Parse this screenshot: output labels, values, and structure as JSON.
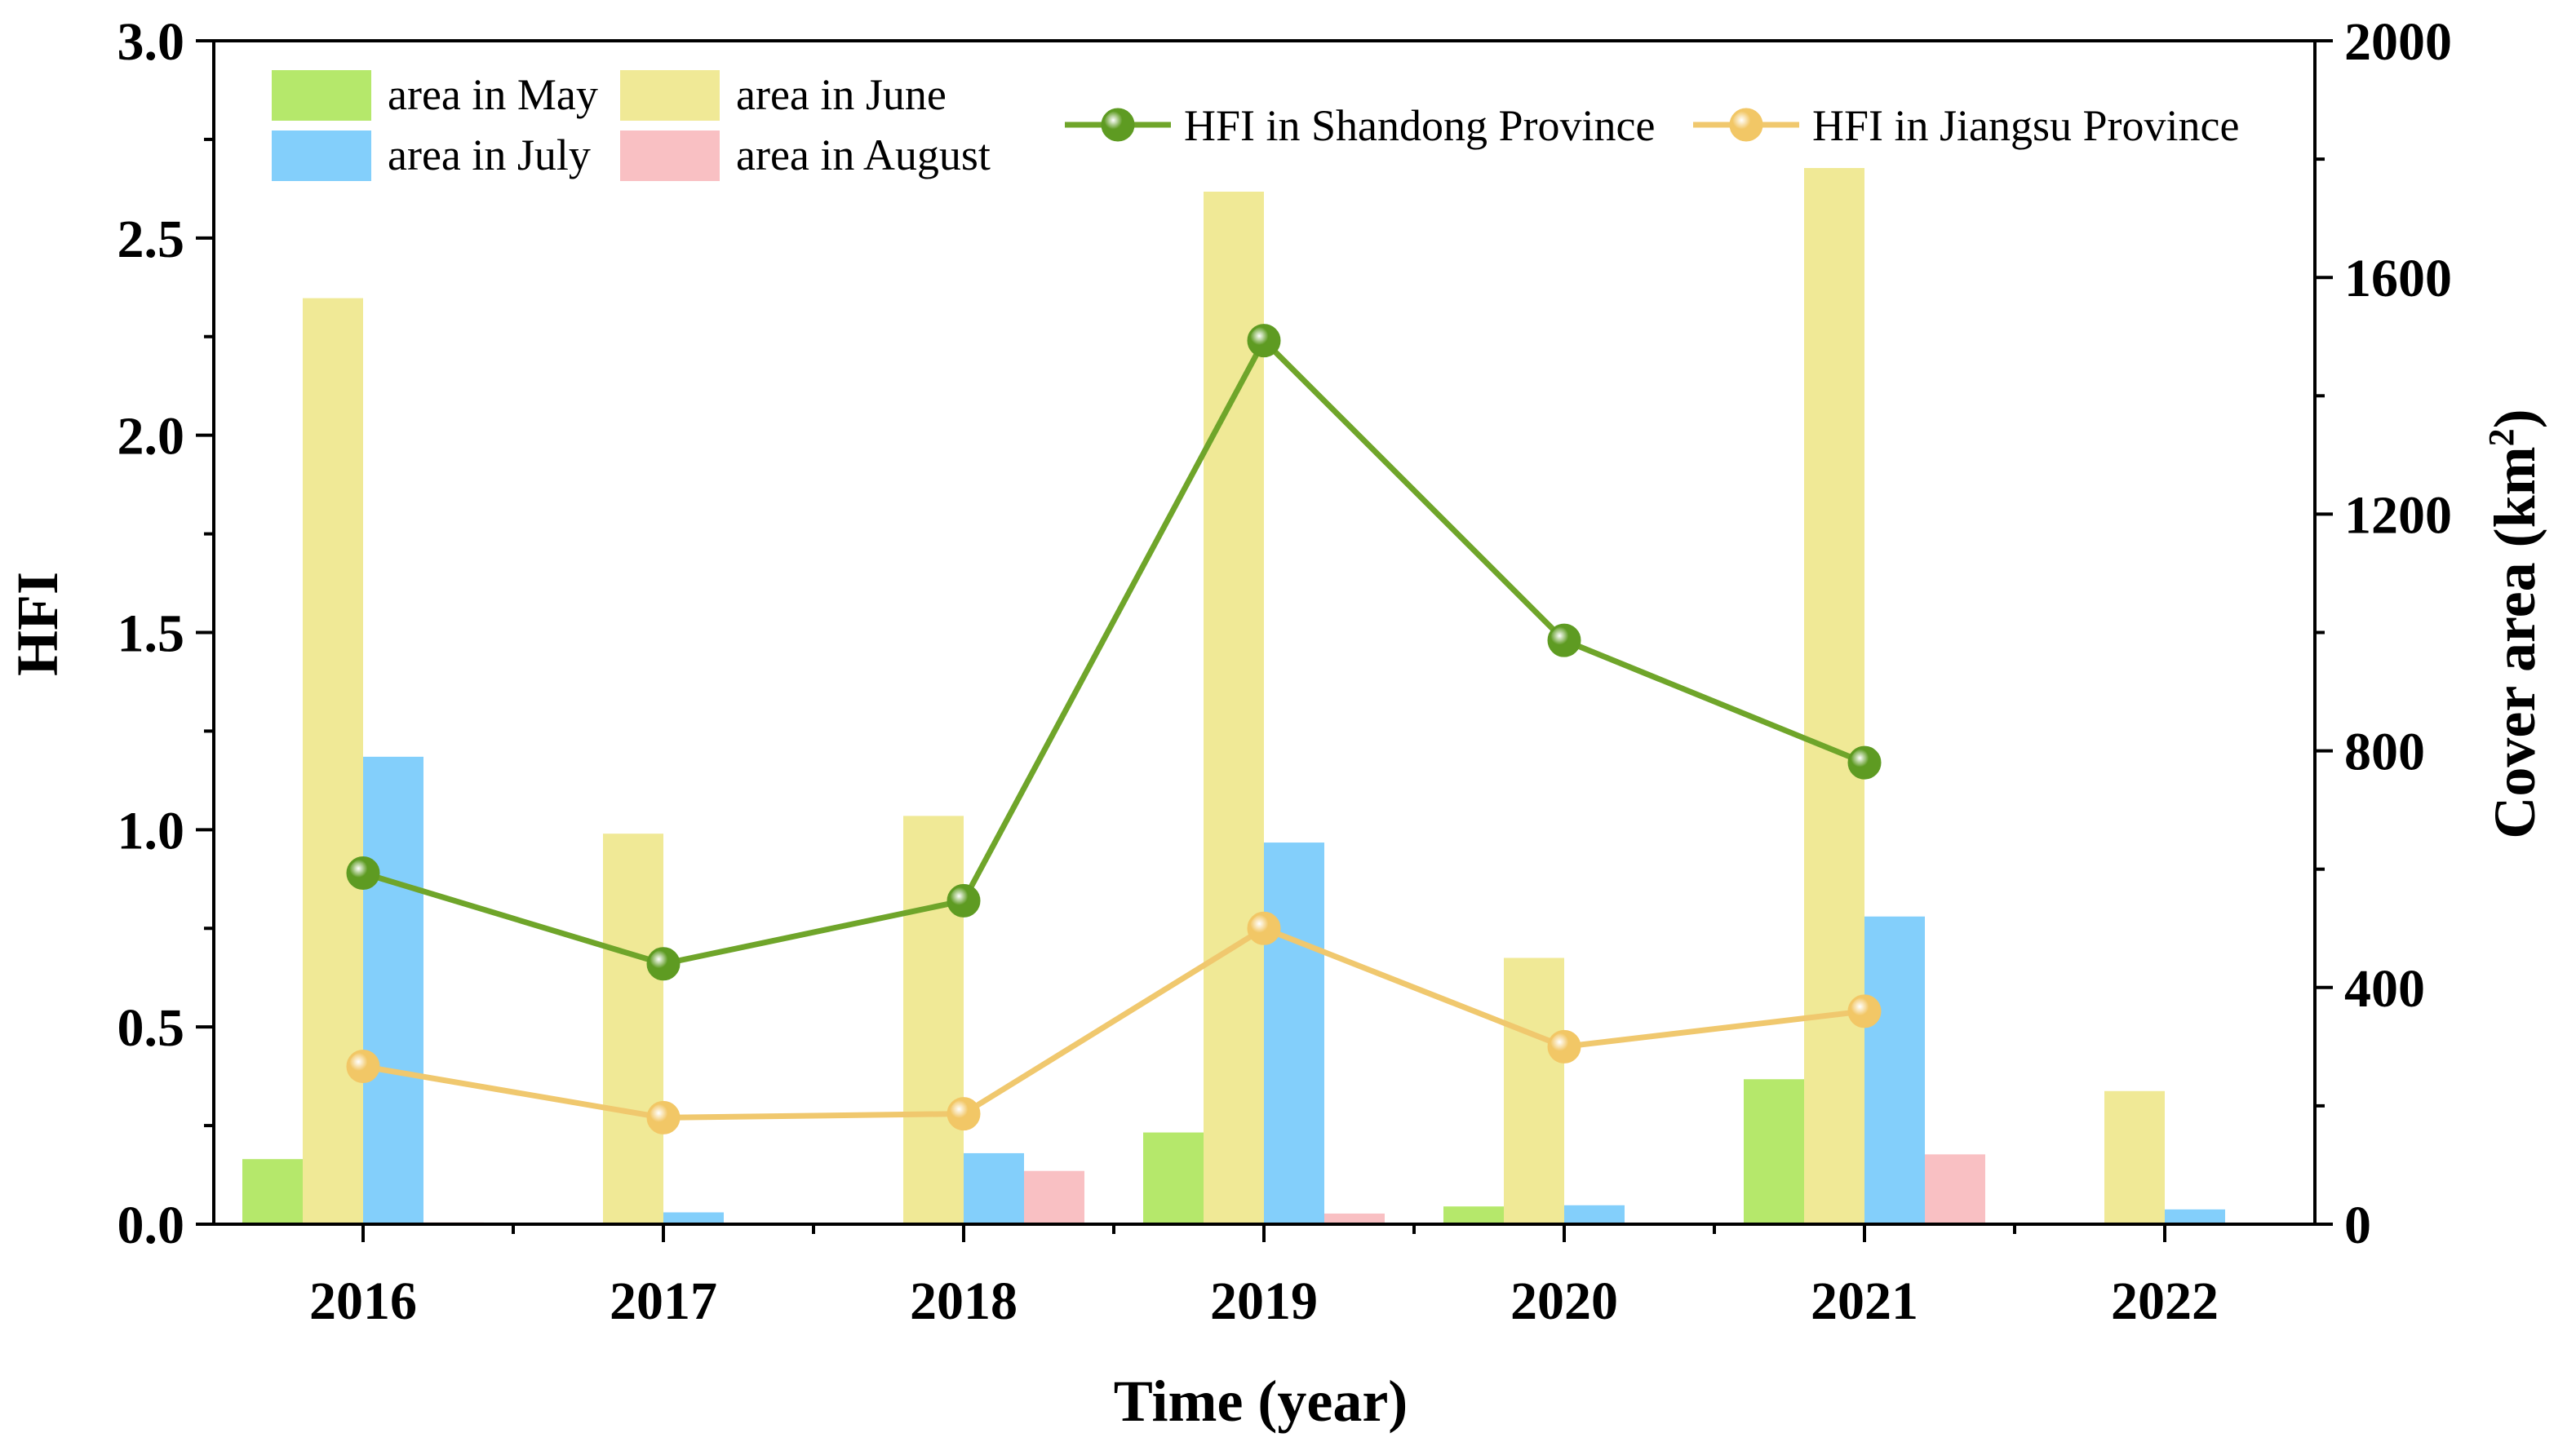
{
  "chart_data": {
    "type": "bar",
    "categories": [
      "2016",
      "2017",
      "2018",
      "2019",
      "2020",
      "2021",
      "2022"
    ],
    "xlabel": "Time (year)",
    "ylabel_left": "HFI",
    "ylabel_right_base": "Cover area (km",
    "ylabel_right_sup": "2",
    "ylabel_right_close": ")",
    "ylim_left": [
      0,
      3.0
    ],
    "yticks_left": [
      "0.0",
      "0.5",
      "1.0",
      "1.5",
      "2.0",
      "2.5",
      "3.0"
    ],
    "ylim_right": [
      0,
      2000
    ],
    "yticks_right": [
      "0",
      "400",
      "800",
      "1200",
      "1600",
      "2000"
    ],
    "bar_series": [
      {
        "name": "area in May",
        "color": "#B5E86B",
        "values": [
          110,
          0,
          0,
          155,
          30,
          245,
          0
        ]
      },
      {
        "name": "area in June",
        "color": "#F0E996",
        "values": [
          1565,
          660,
          690,
          1745,
          450,
          1785,
          225
        ]
      },
      {
        "name": "area in July",
        "color": "#83CFFB",
        "values": [
          790,
          20,
          120,
          645,
          32,
          520,
          25
        ]
      },
      {
        "name": "area in August",
        "color": "#F9C0C3",
        "values": [
          3,
          0,
          90,
          18,
          0,
          118,
          0
        ]
      }
    ],
    "line_series": [
      {
        "name": "HFI in Shandong Province",
        "color": "#6FA52A",
        "marker": "#5E9B22",
        "values": [
          0.89,
          0.66,
          0.82,
          2.24,
          1.48,
          1.17
        ]
      },
      {
        "name": "HFI in Jiangsu Province",
        "color": "#F0C86E",
        "marker": "#F2C766",
        "values": [
          0.4,
          0.27,
          0.28,
          0.75,
          0.45,
          0.54
        ]
      }
    ]
  }
}
